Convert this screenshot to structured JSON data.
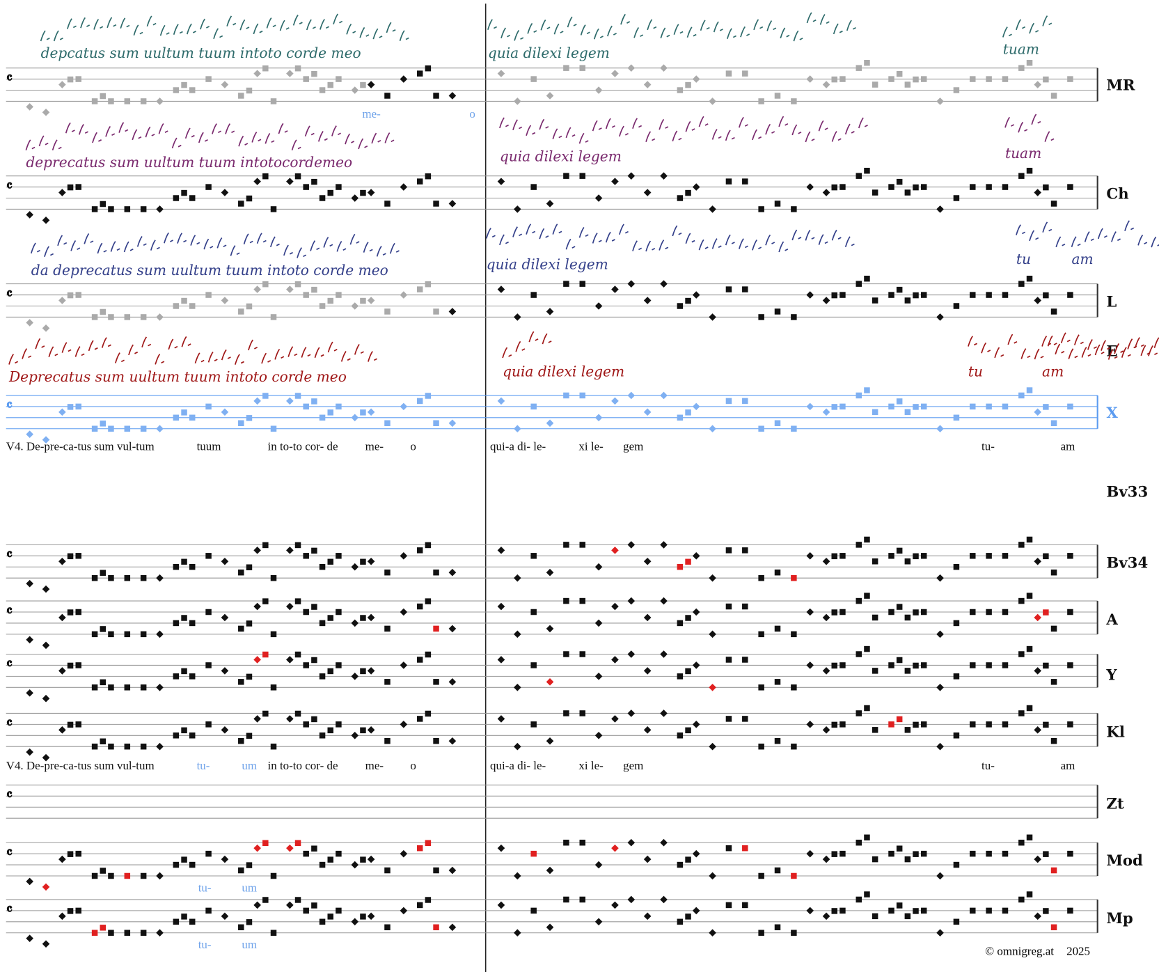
{
  "staves": [
    {
      "label": "MR"
    },
    {
      "label": "Ch"
    },
    {
      "label": "L"
    },
    {
      "label": "E"
    },
    {
      "label": "X"
    },
    {
      "label": "Bv33"
    },
    {
      "label": "Bv34"
    },
    {
      "label": "A"
    },
    {
      "label": "Y"
    },
    {
      "label": "Kl"
    },
    {
      "label": "Zt"
    },
    {
      "label": "Mod"
    },
    {
      "label": "Mp"
    }
  ],
  "manuscript_texts": [
    {
      "text": "depcatus sum uultum tuum intoto corde meo"
    },
    {
      "text": "quia dilexi legem"
    },
    {
      "text": "tuam"
    },
    {
      "text": "deprecatus sum  uultum tuum intotocordemeo"
    },
    {
      "text": "quia dilexi legem"
    },
    {
      "text": "tuam"
    },
    {
      "text": "da  deprecatus sum uultum tuum  intoto corde meo"
    },
    {
      "text": "quia  dilexi  legem"
    },
    {
      "text": "tu"
    },
    {
      "text": "am"
    },
    {
      "text": "Deprecatus sum uultum tuum intoto corde meo"
    },
    {
      "text": "quia dilexi legem"
    },
    {
      "text": "tu"
    },
    {
      "text": "am"
    }
  ],
  "lyrics": [
    [
      "V4. De-pre-ca-tus sum vul-tum",
      "tuum",
      "in to-to cor- de",
      "me-",
      "o",
      "qui-a di- le-",
      "xi le-",
      "gem",
      "tu-",
      "am"
    ],
    [
      "V4. De-pre-ca-tus sum vul-tum",
      "tu-",
      "um",
      "in to-to cor- de",
      "me-",
      "o",
      "qui-a di- le-",
      "xi le-",
      "gem",
      "tu-",
      "am"
    ]
  ],
  "annotations": [
    "me-",
    "o",
    "tu-",
    "um",
    "tu-",
    "um"
  ],
  "footer": {
    "copyright": "© omnigreg.at",
    "year": "2025"
  }
}
